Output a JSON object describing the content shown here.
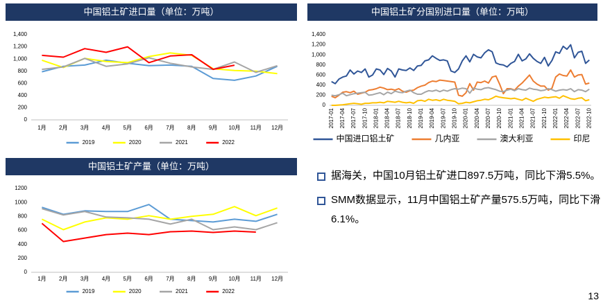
{
  "chart_data": [
    {
      "type": "line",
      "title": "中国铝土矿进口量（单位：万吨）",
      "categories": [
        "1月",
        "2月",
        "3月",
        "4月",
        "5月",
        "6月",
        "7月",
        "8月",
        "9月",
        "10月",
        "11月",
        "12月"
      ],
      "series": [
        {
          "name": "2019",
          "color": "#5b9bd5",
          "values": [
            790,
            880,
            900,
            980,
            930,
            890,
            900,
            880,
            680,
            650,
            720,
            880
          ]
        },
        {
          "name": "2020",
          "color": "#ffff00",
          "values": [
            980,
            860,
            1010,
            960,
            940,
            1040,
            1100,
            1060,
            840,
            810,
            800,
            760
          ]
        },
        {
          "name": "2021",
          "color": "#a5a5a5",
          "values": [
            830,
            870,
            1010,
            880,
            920,
            1020,
            930,
            870,
            830,
            950,
            780,
            890
          ]
        },
        {
          "name": "2022",
          "color": "#ff0000",
          "values": [
            1060,
            1030,
            1170,
            1110,
            1200,
            940,
            1050,
            1070,
            830,
            897.5,
            null,
            null
          ]
        }
      ],
      "ylim": [
        0,
        1400
      ],
      "yticks": [
        0,
        200,
        400,
        600,
        800,
        {
          "value": 1000,
          "label": "1,000"
        },
        {
          "value": 1200,
          "label": "1,200"
        },
        {
          "value": 1400,
          "label": "1,400"
        }
      ],
      "grid": false,
      "legend": "bottom"
    },
    {
      "type": "line",
      "title": "中国铝土矿产量（单位：万吨）",
      "categories": [
        "1月",
        "2月",
        "3月",
        "4月",
        "5月",
        "6月",
        "7月",
        "8月",
        "9月",
        "10月",
        "11月",
        "12月"
      ],
      "series": [
        {
          "name": "2019",
          "color": "#5b9bd5",
          "values": [
            930,
            830,
            880,
            870,
            870,
            970,
            760,
            740,
            720,
            760,
            730,
            830
          ]
        },
        {
          "name": "2020",
          "color": "#ffff00",
          "values": [
            760,
            610,
            720,
            780,
            760,
            810,
            760,
            800,
            830,
            940,
            810,
            920
          ]
        },
        {
          "name": "2021",
          "color": "#a5a5a5",
          "values": [
            910,
            820,
            870,
            790,
            780,
            760,
            690,
            760,
            610,
            650,
            610,
            710
          ]
        },
        {
          "name": "2022",
          "color": "#ff0000",
          "values": [
            700,
            440,
            490,
            540,
            560,
            540,
            580,
            590,
            570,
            590,
            575.5,
            null
          ]
        }
      ],
      "ylim": [
        0,
        1200
      ],
      "yticks": [
        0,
        200,
        400,
        600,
        800,
        1000,
        1200
      ],
      "grid": false,
      "legend": "bottom"
    },
    {
      "type": "line",
      "title": "中国铝土矿分国别进口量（单位：万吨）",
      "categories": [
        "2017-01",
        null,
        null,
        "2017-04",
        null,
        null,
        "2017-07",
        null,
        null,
        "2017-10",
        null,
        null,
        "2018-01",
        null,
        null,
        "2018-04",
        null,
        null,
        "2018-07",
        null,
        null,
        "2018-10",
        null,
        null,
        "2019-01",
        null,
        null,
        "2019-04",
        null,
        null,
        "2019-07",
        null,
        null,
        "2019-10",
        null,
        null,
        "2020-01",
        null,
        null,
        "2020-04",
        null,
        null,
        "2020-07",
        null,
        null,
        "2020-10",
        null,
        null,
        "2021-01",
        null,
        null,
        "2021-04",
        null,
        null,
        "2021-07",
        null,
        null,
        "2021-10",
        null,
        null,
        "2022-01",
        null,
        null,
        "2022-04",
        null,
        null,
        "2022-07",
        null,
        null,
        "2022-10"
      ],
      "series": [
        {
          "name": "中国进口铝土矿",
          "color": "#2f5597",
          "values": [
            470,
            430,
            520,
            560,
            580,
            700,
            620,
            680,
            650,
            720,
            560,
            600,
            720,
            700,
            610,
            730,
            680,
            560,
            720,
            700,
            690,
            740,
            690,
            780,
            790,
            880,
            900,
            980,
            930,
            890,
            900,
            880,
            680,
            650,
            720,
            880,
            980,
            860,
            1010,
            960,
            940,
            1040,
            1100,
            1060,
            840,
            810,
            800,
            760,
            830,
            870,
            1010,
            880,
            920,
            1020,
            930,
            870,
            830,
            950,
            780,
            890,
            1060,
            1030,
            1170,
            1110,
            1200,
            940,
            1050,
            1070,
            830,
            897.5
          ]
        },
        {
          "name": "几内亚",
          "color": "#ed7d31",
          "values": [
            180,
            150,
            200,
            260,
            270,
            250,
            280,
            220,
            240,
            260,
            300,
            310,
            330,
            360,
            340,
            310,
            320,
            300,
            330,
            280,
            260,
            290,
            300,
            350,
            380,
            400,
            450,
            480,
            470,
            500,
            490,
            480,
            470,
            460,
            200,
            180,
            250,
            430,
            300,
            460,
            450,
            480,
            440,
            560,
            580,
            420,
            230,
            330,
            330,
            300,
            380,
            440,
            520,
            600,
            480,
            420,
            380,
            380,
            300,
            340,
            560,
            620,
            590,
            580,
            700,
            560,
            600,
            610,
            420,
            440
          ]
        },
        {
          "name": "澳大利亚",
          "color": "#a5a5a5",
          "values": [
            200,
            190,
            210,
            240,
            190,
            210,
            230,
            240,
            250,
            260,
            200,
            210,
            230,
            250,
            210,
            260,
            230,
            280,
            260,
            250,
            280,
            300,
            250,
            220,
            220,
            260,
            290,
            280,
            300,
            270,
            300,
            280,
            310,
            330,
            320,
            340,
            330,
            240,
            340,
            320,
            310,
            340,
            350,
            330,
            310,
            280,
            270,
            300,
            320,
            290,
            330,
            310,
            300,
            340,
            320,
            310,
            290,
            300,
            330,
            310,
            280,
            300,
            310,
            300,
            330,
            270,
            310,
            300,
            270,
            320
          ]
        },
        {
          "name": "印尼",
          "color": "#ffc000",
          "values": [
            0,
            0,
            5,
            10,
            20,
            30,
            40,
            30,
            20,
            40,
            40,
            50,
            50,
            60,
            50,
            80,
            70,
            60,
            80,
            60,
            50,
            60,
            40,
            90,
            100,
            80,
            120,
            100,
            110,
            90,
            120,
            100,
            90,
            80,
            30,
            40,
            60,
            50,
            70,
            90,
            100,
            120,
            110,
            140,
            180,
            160,
            150,
            140,
            130,
            140,
            120,
            100,
            140,
            110,
            80,
            120,
            140,
            160,
            150,
            160,
            170,
            140,
            190,
            160,
            130,
            120,
            140,
            150,
            90,
            110
          ]
        }
      ],
      "ylim": [
        0,
        1400
      ],
      "yticks": [
        0,
        200,
        400,
        600,
        800,
        {
          "value": 1000,
          "label": "1,000"
        },
        {
          "value": 1200,
          "label": "1,200"
        },
        {
          "value": 1400,
          "label": "1,400"
        }
      ],
      "grid": false,
      "legend": "bottom"
    }
  ],
  "bullets": [
    "据海关，中国10月铝土矿进口897.5万吨，同比下滑5.5%。",
    "SMM数据显示，11月中国铝土矿产量575.5万吨，同比下滑6.1%。"
  ],
  "page_number": "13"
}
